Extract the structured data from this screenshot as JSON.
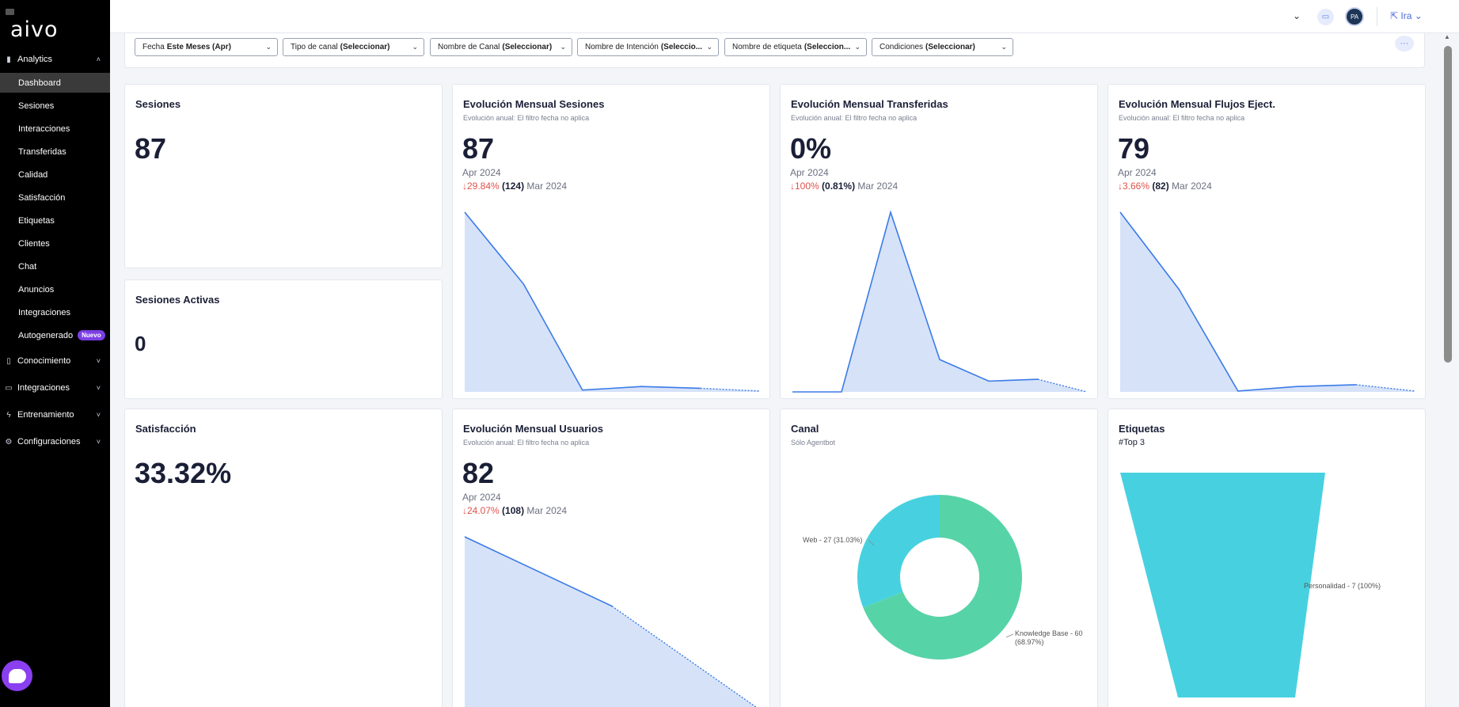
{
  "brand": {
    "logo": "aivo"
  },
  "sidebar": {
    "analytics": "Analytics",
    "items": [
      {
        "label": "Dashboard",
        "active": true
      },
      {
        "label": "Sesiones"
      },
      {
        "label": "Interacciones"
      },
      {
        "label": "Transferidas"
      },
      {
        "label": "Calidad"
      },
      {
        "label": "Satisfacción"
      },
      {
        "label": "Etiquetas"
      },
      {
        "label": "Clientes"
      },
      {
        "label": "Chat"
      },
      {
        "label": "Anuncios"
      },
      {
        "label": "Integraciones"
      },
      {
        "label": "Autogenerado",
        "badge": "Nuevo"
      }
    ],
    "sections": [
      "Conocimiento",
      "Integraciones",
      "Entrenamiento",
      "Configuraciones"
    ]
  },
  "topbar": {
    "avatar": "PA",
    "ira": "Ira"
  },
  "filters": [
    {
      "prefix": "Fecha",
      "value": "Este Meses (Apr)"
    },
    {
      "prefix": "Tipo de canal",
      "value": "(Seleccionar)"
    },
    {
      "prefix": "Nombre de Canal",
      "value": "(Seleccionar)"
    },
    {
      "prefix": "Nombre de Intención",
      "value": "(Seleccio..."
    },
    {
      "prefix": "Nombre de etiqueta",
      "value": "(Seleccion..."
    },
    {
      "prefix": "Condiciones",
      "value": "(Seleccionar)"
    }
  ],
  "cards": {
    "sesiones": {
      "title": "Sesiones",
      "value": "87"
    },
    "sesiones_activas": {
      "title": "Sesiones Activas",
      "value": "0"
    },
    "satisfaccion": {
      "title": "Satisfacción",
      "value": "33.32%"
    },
    "evo_sesiones": {
      "title": "Evolución Mensual Sesiones",
      "subtitle": "Evolución anual: El filtro fecha no aplica",
      "value": "87",
      "period": "Apr 2024",
      "delta_pct": "29.84%",
      "prev_value": "(124)",
      "prev_period": "Mar 2024"
    },
    "evo_transferidas": {
      "title": "Evolución Mensual Transferidas",
      "subtitle": "Evolución anual: El filtro fecha no aplica",
      "value": "0%",
      "period": "Apr 2024",
      "delta_pct": "100%",
      "prev_value": "(0.81%)",
      "prev_period": "Mar 2024"
    },
    "evo_flujos": {
      "title": "Evolución Mensual Flujos Eject.",
      "subtitle": "Evolución anual: El filtro fecha no aplica",
      "value": "79",
      "period": "Apr 2024",
      "delta_pct": "3.66%",
      "prev_value": "(82)",
      "prev_period": "Mar 2024"
    },
    "evo_usuarios": {
      "title": "Evolución Mensual Usuarios",
      "subtitle": "Evolución anual: El filtro fecha no aplica",
      "value": "82",
      "period": "Apr 2024",
      "delta_pct": "24.07%",
      "prev_value": "(108)",
      "prev_period": "Mar 2024"
    },
    "canal": {
      "title": "Canal",
      "subtitle": "Sólo Agentbot"
    },
    "etiquetas": {
      "title": "Etiquetas",
      "subtitle": "#Top 3"
    }
  },
  "colors": {
    "line": "#3b7be8",
    "area": "#d6e2f8",
    "donut_web": "#47d1e0",
    "donut_kb": "#57d3a8",
    "funnel": "#47d1e0",
    "red": "#e0524b"
  },
  "chart_data": [
    {
      "type": "area",
      "id": "sesiones",
      "values": [
        1000,
        600,
        10,
        30,
        20,
        5
      ]
    },
    {
      "type": "area",
      "id": "transferidas",
      "values": [
        0,
        0,
        100,
        18,
        6,
        7,
        0
      ]
    },
    {
      "type": "area",
      "id": "flujos",
      "values": [
        1000,
        570,
        5,
        30,
        40,
        5
      ]
    },
    {
      "type": "area",
      "id": "usuarios",
      "values": [
        1000,
        600,
        5
      ]
    },
    {
      "type": "pie",
      "id": "canal",
      "slices": [
        {
          "label": "Web - 27 (31.03%)",
          "value": 27
        },
        {
          "label": "Knowledge Base - 60 (68.97%)",
          "value": 60
        }
      ]
    },
    {
      "type": "funnel",
      "id": "etiquetas",
      "stages": [
        {
          "label": "Personalidad - 7 (100%)",
          "value": 7
        }
      ]
    }
  ]
}
